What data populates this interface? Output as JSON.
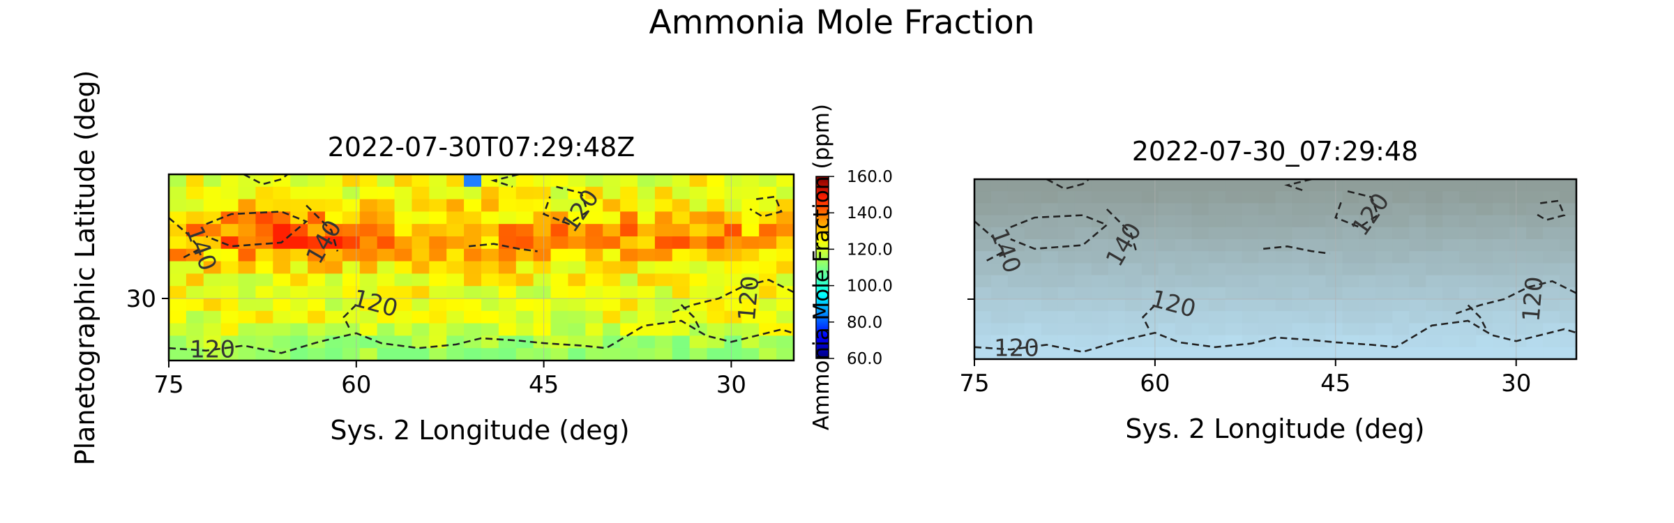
{
  "figure": {
    "title": "Ammonia Mole Fraction",
    "ylabel": "Planetographic Latitude (deg)"
  },
  "colors": {
    "heat_low": "#7fff7f",
    "heat_mid": "#ffff00",
    "heat_high": "#ff2000",
    "heat_outlier_low": "#1f7fff",
    "rgb_top": "#8f9e9a",
    "rgb_bottom": "#b6dcef",
    "contour": "#222222"
  },
  "chart_data": [
    {
      "type": "heatmap",
      "title": "2022-07-30T07:29:48Z",
      "xlabel": "Sys. 2 Longitude (deg)",
      "ylabel": "Planetographic Latitude (deg)",
      "x_ticks": [
        "75",
        "60",
        "45",
        "30"
      ],
      "x_tick_values": [
        75,
        60,
        45,
        30
      ],
      "y_ticks": [
        "30"
      ],
      "y_tick_values": [
        30
      ],
      "xlim": [
        75,
        25
      ],
      "ylim": [
        25,
        40
      ],
      "x_reversed": true,
      "grid": true,
      "colormap": "jet",
      "colorbar": {
        "label": "Ammonia Mole Fraction (ppm)",
        "ticks": [
          "60.0",
          "80.0",
          "100.0",
          "120.0",
          "140.0",
          "160.0"
        ],
        "tick_values": [
          60,
          80,
          100,
          120,
          140,
          160
        ],
        "range": [
          60,
          160
        ]
      },
      "contours": {
        "style": "dashed",
        "levels": [
          120,
          140
        ],
        "labels": [
          {
            "text": "140",
            "lon": 72.5,
            "lat": 34.0,
            "rotate": 70
          },
          {
            "text": "140",
            "lon": 62.5,
            "lat": 34.5,
            "rotate": -60
          },
          {
            "text": "120",
            "lon": 42.0,
            "lat": 37.0,
            "rotate": -55
          },
          {
            "text": "120",
            "lon": 58.5,
            "lat": 29.5,
            "rotate": 15
          },
          {
            "text": "120",
            "lon": 28.5,
            "lat": 30.0,
            "rotate": -85
          },
          {
            "text": "120",
            "lon": 71.5,
            "lat": 25.8,
            "rotate": 0
          }
        ]
      }
    },
    {
      "type": "image",
      "title": "2022-07-30_07:29:48",
      "xlabel": "Sys. 2 Longitude (deg)",
      "x_ticks": [
        "75",
        "60",
        "45",
        "30"
      ],
      "x_tick_values": [
        75,
        60,
        45,
        30
      ],
      "xlim": [
        75,
        25
      ],
      "ylim": [
        25,
        40
      ],
      "x_reversed": true,
      "grid": true,
      "contours": {
        "style": "dashed",
        "levels": [
          120,
          140
        ],
        "labels": [
          {
            "text": "140",
            "lon": 72.5,
            "lat": 34.0,
            "rotate": 70
          },
          {
            "text": "140",
            "lon": 62.5,
            "lat": 34.5,
            "rotate": -60
          },
          {
            "text": "120",
            "lon": 42.0,
            "lat": 37.0,
            "rotate": -55
          },
          {
            "text": "120",
            "lon": 58.5,
            "lat": 29.5,
            "rotate": 15
          },
          {
            "text": "120",
            "lon": 28.5,
            "lat": 30.0,
            "rotate": -85
          },
          {
            "text": "120",
            "lon": 71.5,
            "lat": 25.8,
            "rotate": 0
          }
        ]
      }
    }
  ]
}
